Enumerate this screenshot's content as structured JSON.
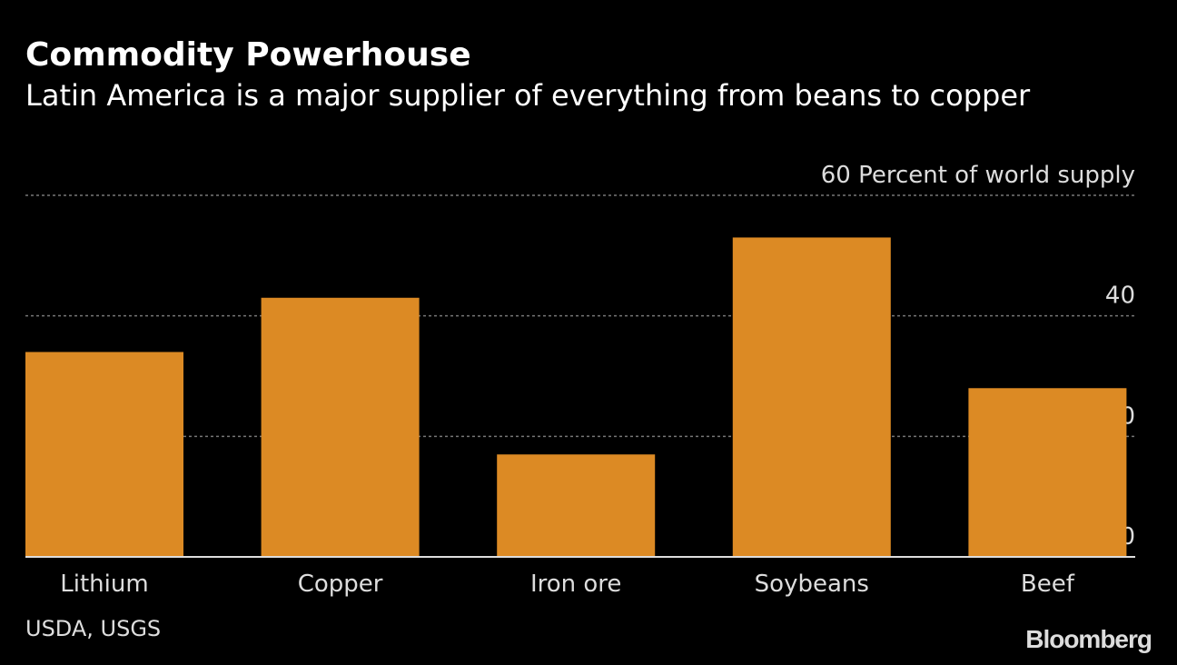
{
  "title": "Commodity Powerhouse",
  "subtitle": "Latin America is a major supplier of everything from beans to copper",
  "source": "USDA, USGS",
  "logo": "Bloomberg",
  "chart_data": {
    "type": "bar",
    "title": "Commodity Powerhouse",
    "subtitle": "Latin America is a major supplier of everything from beans to copper",
    "ylabel": "Percent of world supply",
    "categories": [
      "Lithium",
      "Copper",
      "Iron ore",
      "Soybeans",
      "Beef"
    ],
    "values": [
      34,
      43,
      17,
      53,
      28
    ],
    "ylim": [
      0,
      60
    ],
    "yticks": [
      0,
      20,
      40,
      60
    ],
    "grid": true,
    "bar_color": "#dc8a24",
    "background": "#000000"
  }
}
